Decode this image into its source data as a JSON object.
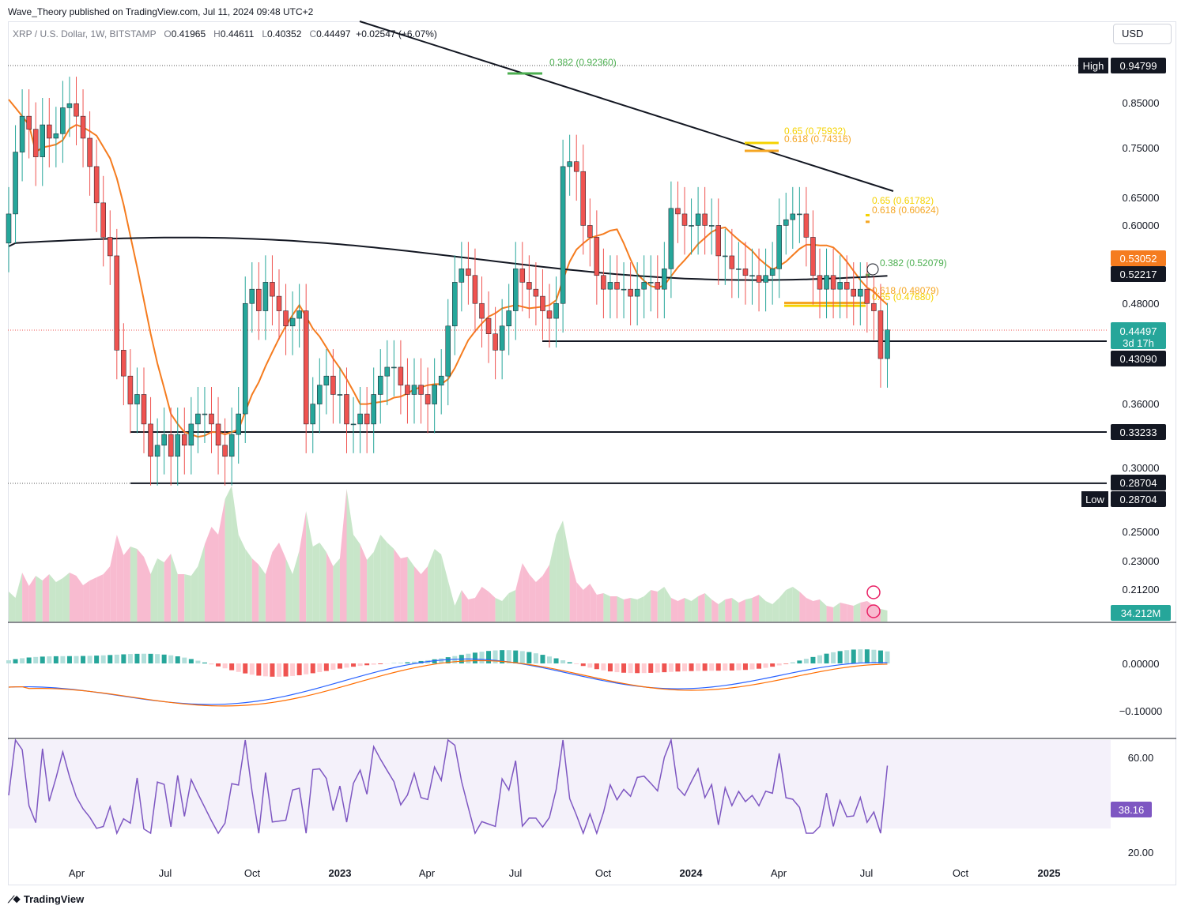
{
  "header": {
    "publisher": "Wave_Theory published on TradingView.com, Jul 11, 2024 09:48 UTC+2",
    "symbol": "XRP / U.S. Dollar, 1W, BITSTAMP",
    "o_label": "O",
    "o": "0.41965",
    "h_label": "H",
    "h": "0.44611",
    "l_label": "L",
    "l": "0.40352",
    "c_label": "C",
    "c": "0.44497",
    "change": "+0.02547 (+6.07%)",
    "currency": "USD"
  },
  "footer": {
    "brand": "TradingView"
  },
  "colors": {
    "up": "#26a69a",
    "down": "#ef5350",
    "ema": "#f57c1f",
    "sma": "#131722",
    "fib_green": "#4caf50",
    "fib_orange": "#f5a623",
    "fib_yellow": "#f5d200",
    "macd": "#2962ff",
    "signal": "#ff6d00",
    "rsi": "#7e57c2"
  },
  "chart_data": [
    {
      "type": "candlestick",
      "title": "XRP / U.S. Dollar, 1W, BITSTAMP",
      "x_ticks": [
        "Apr",
        "Jul",
        "Oct",
        "2023",
        "Apr",
        "Jul",
        "Oct",
        "2024",
        "Apr",
        "Jul",
        "Oct",
        "2025"
      ],
      "y_ticks": [
        "0.85000",
        "0.75000",
        "0.65000",
        "0.60000",
        "0.48000",
        "0.36000",
        "0.30000",
        "0.25000",
        "0.23000",
        "0.21200"
      ],
      "y_scale": "log",
      "price_labels": [
        {
          "name": "High",
          "value": "0.94799"
        },
        {
          "name": "EMA",
          "value": "0.53052"
        },
        {
          "name": "SMA",
          "value": "0.52217"
        },
        {
          "name": "Last",
          "value": "0.44497",
          "timer": "3d 17h"
        },
        {
          "name": "Support",
          "value": "0.43090"
        },
        {
          "name": "Support",
          "value": "0.33233"
        },
        {
          "name": "Support",
          "value": "0.28704"
        },
        {
          "name": "Low",
          "value": "0.28704"
        }
      ],
      "fibonacci": [
        {
          "label": "0.382 (0.92360)",
          "value": 0.9236
        },
        {
          "label": "0.65 (0.75932)",
          "value": 0.75932
        },
        {
          "label": "0.618 (0.74316)",
          "value": 0.74316
        },
        {
          "label": "0.65 (0.61782)",
          "value": 0.61782
        },
        {
          "label": "0.618 (0.60624)",
          "value": 0.60624
        },
        {
          "label": "0.382 (0.52079)",
          "value": 0.52079
        },
        {
          "label": "0.618 (0.48079)",
          "value": 0.48079
        },
        {
          "label": "0.65 (0.47680)",
          "value": 0.4768
        }
      ],
      "horizontal_levels": [
        0.4309,
        0.33233,
        0.28704
      ],
      "close": [
        0.62,
        0.74,
        0.82,
        0.79,
        0.73,
        0.8,
        0.77,
        0.78,
        0.84,
        0.85,
        0.82,
        0.77,
        0.71,
        0.64,
        0.58,
        0.55,
        0.42,
        0.39,
        0.36,
        0.37,
        0.34,
        0.31,
        0.32,
        0.33,
        0.31,
        0.33,
        0.32,
        0.34,
        0.35,
        0.35,
        0.34,
        0.32,
        0.31,
        0.33,
        0.35,
        0.48,
        0.5,
        0.47,
        0.51,
        0.49,
        0.47,
        0.45,
        0.46,
        0.47,
        0.34,
        0.36,
        0.38,
        0.39,
        0.37,
        0.37,
        0.34,
        0.34,
        0.35,
        0.34,
        0.37,
        0.39,
        0.4,
        0.4,
        0.38,
        0.37,
        0.38,
        0.37,
        0.36,
        0.38,
        0.39,
        0.45,
        0.51,
        0.53,
        0.52,
        0.48,
        0.46,
        0.44,
        0.42,
        0.45,
        0.47,
        0.53,
        0.51,
        0.5,
        0.49,
        0.47,
        0.46,
        0.48,
        0.71,
        0.72,
        0.7,
        0.6,
        0.58,
        0.52,
        0.5,
        0.51,
        0.5,
        0.5,
        0.49,
        0.5,
        0.51,
        0.51,
        0.5,
        0.53,
        0.63,
        0.62,
        0.6,
        0.6,
        0.62,
        0.6,
        0.6,
        0.55,
        0.55,
        0.53,
        0.53,
        0.52,
        0.52,
        0.51,
        0.52,
        0.53,
        0.6,
        0.61,
        0.62,
        0.62,
        0.58,
        0.52,
        0.5,
        0.52,
        0.5,
        0.51,
        0.5,
        0.49,
        0.5,
        0.48,
        0.47,
        0.41,
        0.445
      ],
      "ema_50": 0.53052,
      "sma_200": 0.52217
    },
    {
      "type": "area",
      "name": "Volume",
      "last_value": "34.212M"
    },
    {
      "type": "line",
      "name": "MACD",
      "y_ticks": [
        "0.00000",
        "−0.10000"
      ]
    },
    {
      "type": "line",
      "name": "RSI",
      "y_ticks": [
        "60.00",
        "20.00"
      ],
      "last_value": "38.16"
    }
  ]
}
